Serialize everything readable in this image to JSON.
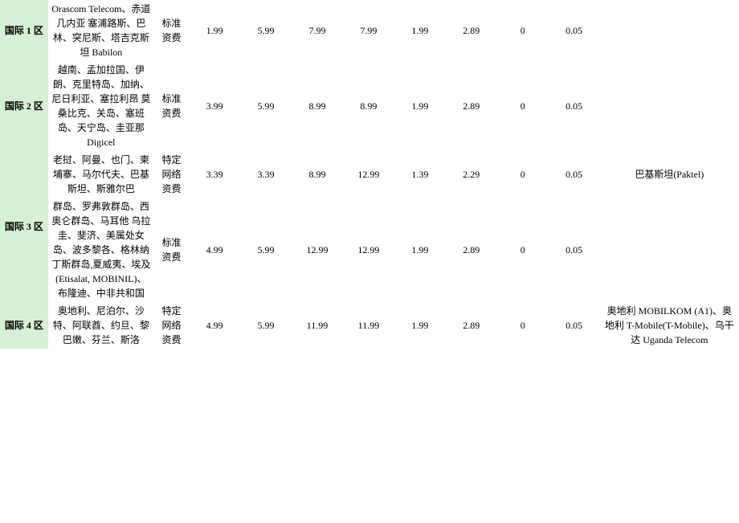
{
  "rows": [
    {
      "zone": "国际 1 区",
      "countries": "Orascom Telecom、赤道几内亚 塞浦路斯、巴林、突尼斯、塔吉克斯坦 Babilon",
      "feetype": "标准资费",
      "v1": "1.99",
      "v2": "5.99",
      "v3": "7.99",
      "v4": "7.99",
      "v5": "1.99",
      "v6": "2.89",
      "v7": "0",
      "v8": "0.05",
      "notes": ""
    },
    {
      "zone": "国际 2 区",
      "countries": "越南、孟加拉国、伊朗、克里特岛、加纳、尼日利亚、塞拉利昂 莫桑比克、关岛、塞班岛、天宁岛、圭亚那 Digicel",
      "feetype": "标准资费",
      "v1": "3.99",
      "v2": "5.99",
      "v3": "8.99",
      "v4": "8.99",
      "v5": "1.99",
      "v6": "2.89",
      "v7": "0",
      "v8": "0.05",
      "notes": ""
    },
    {
      "zone": "",
      "countries": "老挝、阿曼、也门、柬埔寨、马尔代夫、巴基斯坦、斯雅尔巴",
      "feetype": "特定网络资费",
      "v1": "3.39",
      "v2": "3.39",
      "v3": "8.99",
      "v4": "12.99",
      "v5": "1.39",
      "v6": "2.29",
      "v7": "0",
      "v8": "0.05",
      "notes": "巴基斯坦(Paktel)"
    },
    {
      "zone": "国际 3 区",
      "countries": "群岛、罗弗敦群岛、西奥仑群岛、马耳他 乌拉圭、斐济、美属处女岛、波多黎各、格林纳丁斯群岛,夏威夷、埃及(Etisalat, MOBINIL)、布隆迪、中非共和国",
      "feetype": "标准资费",
      "v1": "4.99",
      "v2": "5.99",
      "v3": "12.99",
      "v4": "12.99",
      "v5": "1.99",
      "v6": "2.89",
      "v7": "0",
      "v8": "0.05",
      "notes": ""
    },
    {
      "zone": "国际 4 区",
      "countries": "奥地利、尼泊尔、沙特、阿联酋、约旦、黎巴嫩、芬兰、斯洛",
      "feetype": "特定网络资费",
      "v1": "4.99",
      "v2": "5.99",
      "v3": "11.99",
      "v4": "11.99",
      "v5": "1.99",
      "v6": "2.89",
      "v7": "0",
      "v8": "0.05",
      "notes": "奥地利 MOBILKOM (A1)、奥地利 T-Mobile(T-Mobile)、乌干达 Uganda Telecom"
    }
  ]
}
